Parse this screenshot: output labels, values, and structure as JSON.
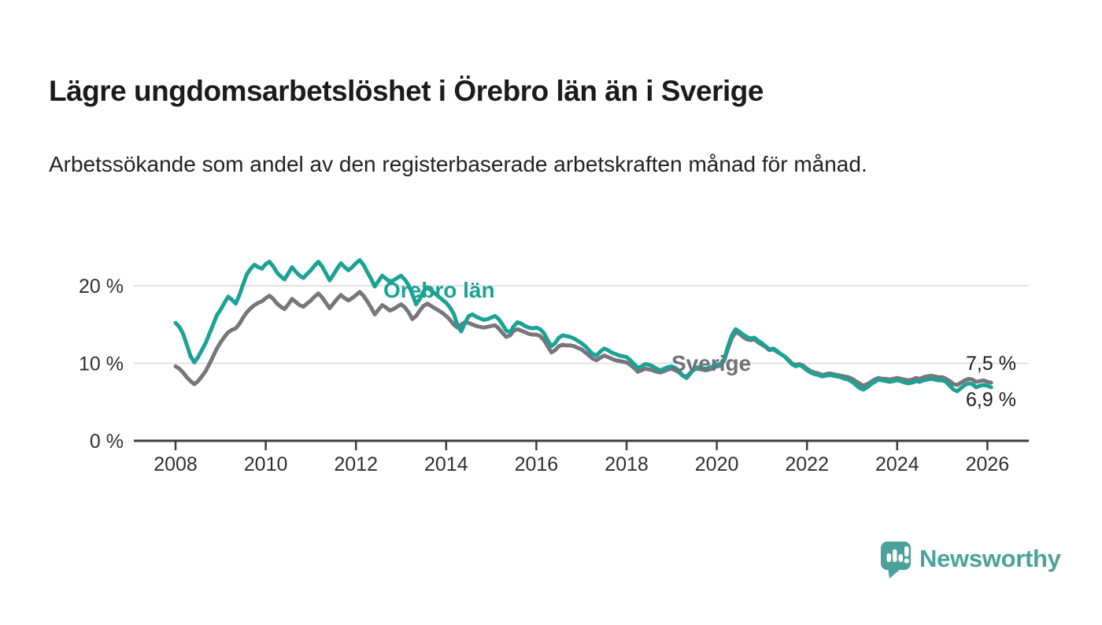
{
  "header": {
    "title": "Lägre ungdomsarbetslöshet i Örebro län än i Sverige",
    "subtitle": "Arbetssökande som andel av den registerbaserade arbetskraften månad för månad."
  },
  "chart_data": {
    "type": "line",
    "x_unit": "month",
    "x_start": "2008-01",
    "x_end": "2026-02",
    "x_tick_years": [
      2008,
      2010,
      2012,
      2014,
      2016,
      2018,
      2020,
      2022,
      2024,
      2026
    ],
    "y_ticks": [
      {
        "value": 0,
        "label": "0 %"
      },
      {
        "value": 10,
        "label": "10 %"
      },
      {
        "value": 20,
        "label": "20 %"
      }
    ],
    "ylim": [
      0,
      24
    ],
    "grid": "horizontal",
    "legend": "inline-labels",
    "series": [
      {
        "name": "Örebro län",
        "color": "#1ba295",
        "end_label": "6,9 %",
        "values": [
          15.2,
          14.7,
          13.8,
          12.4,
          10.9,
          10.1,
          10.8,
          11.7,
          12.6,
          13.8,
          15.0,
          16.2,
          16.9,
          17.8,
          18.6,
          18.2,
          17.7,
          18.8,
          20.2,
          21.5,
          22.2,
          22.7,
          22.4,
          22.2,
          22.8,
          23.1,
          22.5,
          21.7,
          21.2,
          20.8,
          21.6,
          22.4,
          21.8,
          21.3,
          21.0,
          21.5,
          22.0,
          22.6,
          23.1,
          22.5,
          21.6,
          20.7,
          21.4,
          22.2,
          22.9,
          22.4,
          22.0,
          22.4,
          22.9,
          23.3,
          22.7,
          21.8,
          20.9,
          19.9,
          20.6,
          21.3,
          20.9,
          20.5,
          20.7,
          21.0,
          21.3,
          20.8,
          20.1,
          18.9,
          17.6,
          18.3,
          19.3,
          19.8,
          19.4,
          19.0,
          18.6,
          18.2,
          17.8,
          17.2,
          16.4,
          14.9,
          14.1,
          15.2,
          16.1,
          16.3,
          16.0,
          15.8,
          15.6,
          15.7,
          15.9,
          16.1,
          15.7,
          15.0,
          14.2,
          14.0,
          14.8,
          15.3,
          15.1,
          14.8,
          14.6,
          14.5,
          14.6,
          14.4,
          13.9,
          13.0,
          12.2,
          12.6,
          13.3,
          13.6,
          13.5,
          13.4,
          13.2,
          12.9,
          12.6,
          12.2,
          11.7,
          11.2,
          11.0,
          11.5,
          11.9,
          11.7,
          11.4,
          11.2,
          11.0,
          10.9,
          10.8,
          10.4,
          9.9,
          9.4,
          9.6,
          9.9,
          9.8,
          9.6,
          9.3,
          9.1,
          9.3,
          9.5,
          9.6,
          9.4,
          9.0,
          8.4,
          8.1,
          8.7,
          9.3,
          9.5,
          9.4,
          9.3,
          9.4,
          9.6,
          9.8,
          9.9,
          10.6,
          12.2,
          13.6,
          14.4,
          14.1,
          13.7,
          13.4,
          13.2,
          13.3,
          12.9,
          12.6,
          12.2,
          11.8,
          11.9,
          11.6,
          11.2,
          10.9,
          10.4,
          9.9,
          9.6,
          9.8,
          9.5,
          9.1,
          8.8,
          8.6,
          8.5,
          8.3,
          8.4,
          8.5,
          8.4,
          8.3,
          8.2,
          8.0,
          7.9,
          7.6,
          7.2,
          6.8,
          6.6,
          6.9,
          7.3,
          7.6,
          7.9,
          7.8,
          7.7,
          7.6,
          7.7,
          7.8,
          7.7,
          7.5,
          7.4,
          7.5,
          7.7,
          7.6,
          7.8,
          7.9,
          8.0,
          7.9,
          7.8,
          7.8,
          7.6,
          7.1,
          6.6,
          6.4,
          6.8,
          7.2,
          7.4,
          7.3,
          6.9,
          7.1,
          7.2,
          7.1,
          6.9
        ]
      },
      {
        "name": "Sverige",
        "color": "#77777b",
        "end_label": "7,5 %",
        "values": [
          9.6,
          9.3,
          8.8,
          8.2,
          7.7,
          7.3,
          7.7,
          8.3,
          9.0,
          9.9,
          10.9,
          11.9,
          12.7,
          13.4,
          14.0,
          14.3,
          14.5,
          15.1,
          15.9,
          16.6,
          17.1,
          17.5,
          17.8,
          18.0,
          18.4,
          18.7,
          18.3,
          17.7,
          17.3,
          17.0,
          17.6,
          18.3,
          17.9,
          17.5,
          17.3,
          17.7,
          18.1,
          18.6,
          19.0,
          18.5,
          17.8,
          17.1,
          17.7,
          18.3,
          18.8,
          18.4,
          18.1,
          18.4,
          18.8,
          19.2,
          18.7,
          18.0,
          17.2,
          16.3,
          16.9,
          17.5,
          17.2,
          16.8,
          17.0,
          17.3,
          17.6,
          17.2,
          16.6,
          15.7,
          16.1,
          16.8,
          17.4,
          17.7,
          17.4,
          17.1,
          16.8,
          16.5,
          16.1,
          15.6,
          15.0,
          14.6,
          15.0,
          15.3,
          15.2,
          15.0,
          14.8,
          14.7,
          14.6,
          14.7,
          14.8,
          14.9,
          14.5,
          13.9,
          13.4,
          13.6,
          14.2,
          14.4,
          14.2,
          14.0,
          13.8,
          13.7,
          13.7,
          13.5,
          13.0,
          12.2,
          11.4,
          11.7,
          12.2,
          12.4,
          12.3,
          12.3,
          12.2,
          12.0,
          11.8,
          11.4,
          11.0,
          10.6,
          10.4,
          10.7,
          11.0,
          10.8,
          10.6,
          10.4,
          10.3,
          10.2,
          10.1,
          9.8,
          9.4,
          8.9,
          9.1,
          9.3,
          9.2,
          9.1,
          8.9,
          8.8,
          9.0,
          9.2,
          9.3,
          9.1,
          8.8,
          8.4,
          8.3,
          8.8,
          9.2,
          9.3,
          9.2,
          9.1,
          9.2,
          9.4,
          9.6,
          9.7,
          10.4,
          11.9,
          13.2,
          14.0,
          13.8,
          13.4,
          13.1,
          13.0,
          13.1,
          12.7,
          12.4,
          12.1,
          11.7,
          11.8,
          11.5,
          11.2,
          10.9,
          10.5,
          10.0,
          9.8,
          9.9,
          9.7,
          9.3,
          9.0,
          8.8,
          8.7,
          8.5,
          8.6,
          8.7,
          8.6,
          8.5,
          8.4,
          8.3,
          8.2,
          8.0,
          7.7,
          7.4,
          7.1,
          7.3,
          7.6,
          7.9,
          8.1,
          8.0,
          8.0,
          7.9,
          8.0,
          8.1,
          8.0,
          7.9,
          7.8,
          7.9,
          8.1,
          8.0,
          8.2,
          8.3,
          8.4,
          8.3,
          8.2,
          8.2,
          8.0,
          7.7,
          7.3,
          7.2,
          7.5,
          7.8,
          8.0,
          7.9,
          7.6,
          7.7,
          7.8,
          7.6,
          7.5
        ]
      }
    ],
    "axis_color": "#3e3e42",
    "grid_color": "#d9d9d9",
    "tick_label_color": "#2f2f33"
  },
  "footer": {
    "brand": "Newsworthy",
    "brand_color": "#4ba29b",
    "logo_icon": "bar-chart-speech-bubble-icon"
  }
}
